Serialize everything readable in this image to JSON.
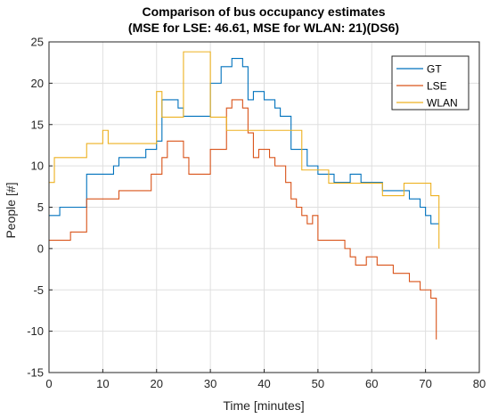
{
  "chart_data": {
    "type": "line",
    "title": [
      "Comparison of bus occupancy estimates",
      "(MSE for LSE: 46.61, MSE for WLAN: 21)(DS6)"
    ],
    "xlabel": "Time [minutes]",
    "ylabel": "People [#]",
    "xlim": [
      0,
      80
    ],
    "ylim": [
      -15,
      25
    ],
    "xticks": [
      0,
      10,
      20,
      30,
      40,
      50,
      60,
      70,
      80
    ],
    "yticks": [
      -15,
      -10,
      -5,
      0,
      5,
      10,
      15,
      20,
      25
    ],
    "grid": true,
    "legend_position": "top-right",
    "step": true,
    "series": [
      {
        "name": "GT",
        "color": "#0072BD",
        "points": [
          [
            0,
            4
          ],
          [
            2,
            5
          ],
          [
            7,
            9
          ],
          [
            12,
            10
          ],
          [
            13,
            11
          ],
          [
            18,
            12
          ],
          [
            20,
            13
          ],
          [
            21,
            18
          ],
          [
            24,
            17
          ],
          [
            25,
            16
          ],
          [
            30,
            20
          ],
          [
            32,
            22
          ],
          [
            34,
            23
          ],
          [
            36,
            22
          ],
          [
            37,
            18
          ],
          [
            38,
            19
          ],
          [
            40,
            18
          ],
          [
            42,
            17
          ],
          [
            43,
            16
          ],
          [
            45,
            12
          ],
          [
            47,
            12
          ],
          [
            48,
            10
          ],
          [
            50,
            9
          ],
          [
            53,
            8
          ],
          [
            56,
            9
          ],
          [
            58,
            8
          ],
          [
            61,
            8
          ],
          [
            62,
            7
          ],
          [
            66,
            7
          ],
          [
            67,
            6
          ],
          [
            69,
            5
          ],
          [
            70,
            4
          ],
          [
            71,
            3
          ],
          [
            72.5,
            3
          ]
        ]
      },
      {
        "name": "LSE",
        "color": "#D95319",
        "points": [
          [
            0,
            1
          ],
          [
            2,
            1
          ],
          [
            4,
            2
          ],
          [
            7,
            6
          ],
          [
            12,
            6
          ],
          [
            13,
            7
          ],
          [
            16,
            7
          ],
          [
            19,
            9
          ],
          [
            21,
            11
          ],
          [
            22,
            13
          ],
          [
            25,
            11
          ],
          [
            26,
            9
          ],
          [
            29,
            9
          ],
          [
            30,
            12
          ],
          [
            33,
            17
          ],
          [
            34,
            18
          ],
          [
            36,
            17
          ],
          [
            37,
            14
          ],
          [
            38,
            11
          ],
          [
            39,
            12
          ],
          [
            41,
            11
          ],
          [
            42,
            10
          ],
          [
            44,
            8
          ],
          [
            45,
            6
          ],
          [
            46,
            5
          ],
          [
            47,
            4
          ],
          [
            48,
            3
          ],
          [
            49,
            4
          ],
          [
            50,
            1
          ],
          [
            55,
            0
          ],
          [
            56,
            -1
          ],
          [
            57,
            -2
          ],
          [
            59,
            -1
          ],
          [
            61,
            -2
          ],
          [
            64,
            -3
          ],
          [
            67,
            -4
          ],
          [
            69,
            -5
          ],
          [
            71,
            -6
          ],
          [
            72,
            -11
          ]
        ]
      },
      {
        "name": "WLAN",
        "color": "#EDB120",
        "points": [
          [
            0,
            8
          ],
          [
            1,
            11
          ],
          [
            6,
            11
          ],
          [
            7,
            12.7
          ],
          [
            9,
            12.7
          ],
          [
            10,
            14.3
          ],
          [
            11,
            12.7
          ],
          [
            20,
            19
          ],
          [
            21,
            15.9
          ],
          [
            25,
            23.8
          ],
          [
            30,
            15.9
          ],
          [
            31,
            15.9
          ],
          [
            32,
            15.9
          ],
          [
            33,
            14.3
          ],
          [
            38,
            14.3
          ],
          [
            45,
            14.3
          ],
          [
            47,
            9.5
          ],
          [
            49,
            9.5
          ],
          [
            52,
            7.9
          ],
          [
            55,
            7.9
          ],
          [
            56,
            7.9
          ],
          [
            58,
            7.9
          ],
          [
            62,
            6.4
          ],
          [
            66,
            7.9
          ],
          [
            70,
            7.9
          ],
          [
            71,
            6.4
          ],
          [
            72.5,
            0
          ]
        ]
      }
    ]
  }
}
